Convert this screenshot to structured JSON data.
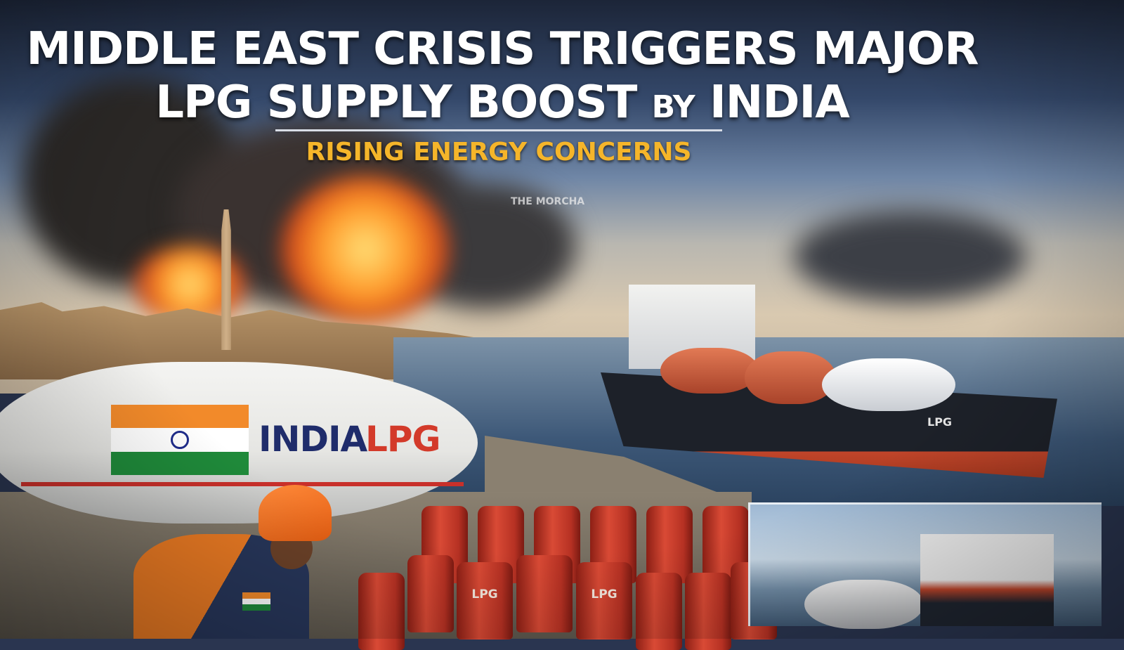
{
  "headline": {
    "line1": "MIDDLE EAST CRISIS TRIGGERS MAJOR",
    "line2_main": "LPG SUPPLY BOOST",
    "line2_by": "BY",
    "line2_end": "INDIA",
    "subtitle": "RISING ENERGY CONCERNS"
  },
  "watermark": "THE MORCHA",
  "truck": {
    "brand_country": "INDIA",
    "brand_product": "LPG"
  },
  "ship": {
    "hull_label": "LPG"
  },
  "cylinders": {
    "label": "LPG"
  },
  "colors": {
    "subtitle": "#f5b52a",
    "cylinder_red": "#c23a2a",
    "flag_saffron": "#f28a2a",
    "flag_green": "#1f8a3a",
    "navy": "#1f2c6b"
  }
}
